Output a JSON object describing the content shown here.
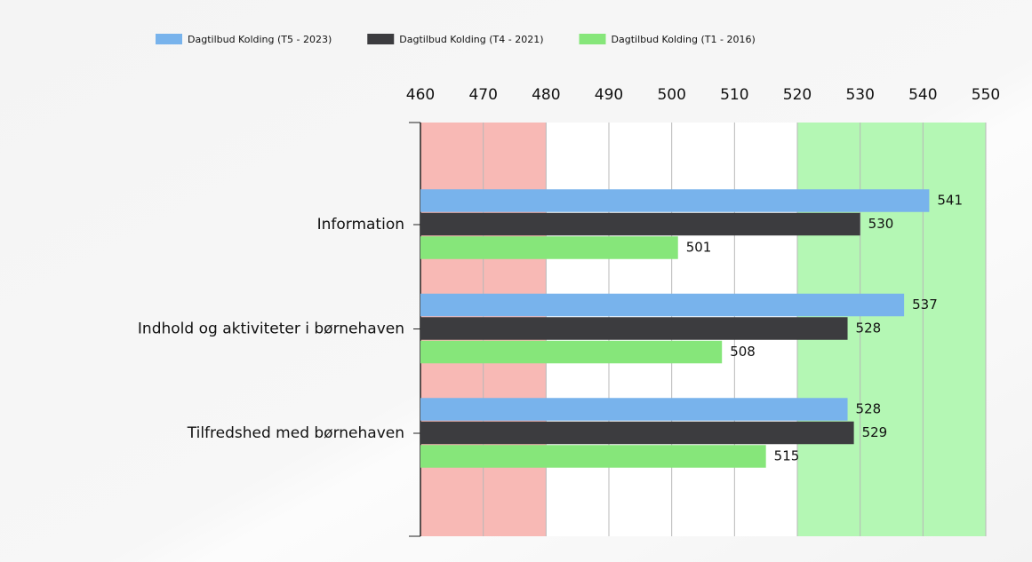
{
  "chart_data": {
    "type": "hbar",
    "categories": [
      "Information",
      "Indhold og aktiviteter i børnehaven",
      "Tilfredshed med børnehaven"
    ],
    "series": [
      {
        "name": "Dagtilbud Kolding (T5 - 2023)",
        "color": "#78b3ec",
        "values": [
          541,
          537,
          528
        ]
      },
      {
        "name": "Dagtilbud Kolding (T4 - 2021)",
        "color": "#3c3c3f",
        "values": [
          530,
          528,
          529
        ]
      },
      {
        "name": "Dagtilbud Kolding (T1 - 2016)",
        "color": "#86e67a",
        "values": [
          501,
          508,
          515
        ]
      }
    ],
    "xlim": [
      460,
      550
    ],
    "xticks": [
      460,
      470,
      480,
      490,
      500,
      510,
      520,
      530,
      540,
      550
    ],
    "grid": true,
    "legend": "top",
    "bands": [
      {
        "from": 460,
        "to": 480,
        "color": "#f8b9b5"
      },
      {
        "from": 520,
        "to": 550,
        "color": "#b4f7b4"
      }
    ]
  }
}
